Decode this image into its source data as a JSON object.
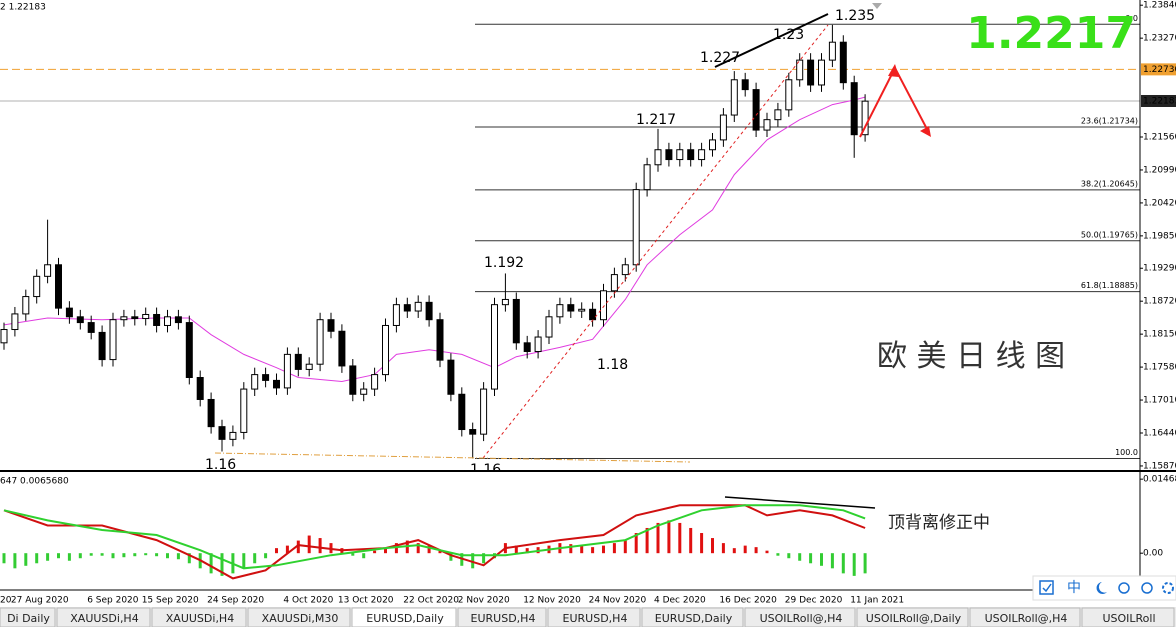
{
  "chart_data": [
    {
      "type": "candlestick",
      "header": "2 1.22183",
      "categories": [
        "20",
        "27 Aug 2020",
        null,
        null,
        null,
        null,
        null,
        null,
        "6 Sep 2020",
        null,
        null,
        null,
        null,
        "15 Sep 2020",
        null,
        null,
        null,
        null,
        null,
        "24 Sep 2020",
        null,
        null,
        null,
        null,
        null,
        null,
        "4 Oct 2020",
        null,
        null,
        null,
        null,
        "13 Oct 2020",
        null,
        null,
        null,
        null,
        null,
        "22 Oct 2020",
        null,
        null,
        null,
        null,
        "2 Nov 2020",
        null,
        null,
        null,
        null,
        null,
        "12 Nov 2020",
        null,
        null,
        null,
        null,
        null,
        "24 Nov 2020",
        null,
        null,
        null,
        null,
        null,
        "4 Dec 2020",
        null,
        null,
        null,
        null,
        null,
        "16 Dec 2020",
        null,
        null,
        null,
        null,
        null,
        "29 Dec 2020",
        null,
        null,
        null,
        null,
        null,
        "11 Jan 2021",
        null
      ],
      "open": [
        1.18,
        1.1823,
        1.185,
        1.188,
        1.1915,
        1.1935,
        1.186,
        1.1845,
        1.1835,
        1.1818,
        1.1771,
        1.184,
        1.1845,
        1.1842,
        1.1849,
        1.183,
        1.1845,
        1.1835,
        1.174,
        1.1702,
        1.1655,
        1.1633,
        1.1645,
        1.172,
        1.1745,
        1.1735,
        1.1722,
        1.178,
        1.1754,
        1.1763,
        1.184,
        1.182,
        1.176,
        1.1711,
        1.172,
        1.1745,
        1.183,
        1.1866,
        1.1855,
        1.187,
        1.184,
        1.177,
        1.1711,
        1.165,
        1.1642,
        1.172,
        1.1866,
        1.1875,
        1.18,
        1.1785,
        1.181,
        1.1845,
        1.1866,
        1.1855,
        1.1858,
        1.184,
        1.189,
        1.1918,
        1.1935,
        1.2065,
        1.2108,
        1.2134,
        1.2117,
        1.2134,
        1.2117,
        1.2134,
        1.2151,
        1.2194,
        1.2255,
        1.2238,
        1.2168,
        1.2186,
        1.2203,
        1.2255,
        1.2289,
        1.2246,
        1.2289,
        1.232,
        1.225,
        1.216
      ],
      "high": [
        1.1835,
        1.1862,
        1.1892,
        1.1927,
        1.2013,
        1.1947,
        1.1872,
        1.1857,
        1.1847,
        1.183,
        1.1852,
        1.1857,
        1.1857,
        1.1861,
        1.1861,
        1.1857,
        1.1857,
        1.1847,
        1.1752,
        1.1714,
        1.1667,
        1.1657,
        1.1732,
        1.1757,
        1.1757,
        1.1747,
        1.1792,
        1.1792,
        1.1775,
        1.1852,
        1.1852,
        1.1832,
        1.1772,
        1.1732,
        1.1757,
        1.1842,
        1.1878,
        1.1878,
        1.1882,
        1.1882,
        1.1852,
        1.1782,
        1.1723,
        1.1662,
        1.1732,
        1.1878,
        1.192,
        1.1887,
        1.1812,
        1.1822,
        1.1857,
        1.1878,
        1.1878,
        1.187,
        1.187,
        1.1902,
        1.193,
        1.1947,
        1.2077,
        1.212,
        1.217,
        1.2146,
        1.2146,
        1.2146,
        1.2146,
        1.2163,
        1.2206,
        1.227,
        1.2267,
        1.225,
        1.2198,
        1.2215,
        1.2267,
        1.2301,
        1.2301,
        1.2301,
        1.235,
        1.2332,
        1.2262,
        1.223
      ],
      "low": [
        1.1788,
        1.1811,
        1.1838,
        1.1868,
        1.1903,
        1.1848,
        1.1833,
        1.1823,
        1.1806,
        1.1759,
        1.1759,
        1.1828,
        1.183,
        1.183,
        1.1818,
        1.1818,
        1.1823,
        1.1728,
        1.169,
        1.1643,
        1.1612,
        1.1621,
        1.1633,
        1.1708,
        1.1723,
        1.171,
        1.171,
        1.1742,
        1.1742,
        1.1751,
        1.1808,
        1.1748,
        1.1699,
        1.1699,
        1.1708,
        1.1733,
        1.1818,
        1.1843,
        1.1843,
        1.1828,
        1.1758,
        1.1699,
        1.1638,
        1.16,
        1.163,
        1.1708,
        1.1854,
        1.1788,
        1.1773,
        1.1773,
        1.1798,
        1.1833,
        1.1843,
        1.1843,
        1.1828,
        1.1828,
        1.1878,
        1.1906,
        1.1923,
        1.2053,
        1.2096,
        1.2105,
        1.2105,
        1.2105,
        1.2105,
        1.2122,
        1.2139,
        1.2182,
        1.2226,
        1.2156,
        1.2156,
        1.2174,
        1.2191,
        1.2243,
        1.2234,
        1.2234,
        1.2277,
        1.2238,
        1.212,
        1.2148
      ],
      "close": [
        1.1823,
        1.185,
        1.188,
        1.1915,
        1.1935,
        1.186,
        1.1845,
        1.1835,
        1.1818,
        1.1771,
        1.184,
        1.1845,
        1.1842,
        1.1849,
        1.183,
        1.1845,
        1.1835,
        1.174,
        1.1702,
        1.1655,
        1.1633,
        1.1645,
        1.172,
        1.1745,
        1.1735,
        1.1722,
        1.178,
        1.1754,
        1.1763,
        1.184,
        1.182,
        1.176,
        1.1711,
        1.172,
        1.1745,
        1.183,
        1.1866,
        1.1855,
        1.187,
        1.184,
        1.177,
        1.1711,
        1.165,
        1.1642,
        1.172,
        1.1866,
        1.1875,
        1.18,
        1.1785,
        1.181,
        1.1845,
        1.1866,
        1.1855,
        1.1858,
        1.184,
        1.189,
        1.1918,
        1.1935,
        1.2065,
        1.2108,
        1.2134,
        1.2117,
        1.2134,
        1.2117,
        1.2134,
        1.2151,
        1.2194,
        1.2255,
        1.2238,
        1.2168,
        1.2186,
        1.2203,
        1.2255,
        1.2289,
        1.2246,
        1.2289,
        1.232,
        1.225,
        1.216,
        1.2218
      ],
      "color_up": "#ffffff",
      "color_down": "#000000",
      "ma": {
        "color": "#e03ce0",
        "x": [
          0,
          4,
          9,
          14,
          17,
          19,
          22,
          25,
          27,
          31,
          34,
          36,
          39,
          42,
          45,
          47,
          51,
          54,
          57,
          59,
          62,
          65,
          67,
          70,
          73,
          76,
          78,
          79
        ],
        "values": [
          1.1831,
          1.1843,
          1.184,
          1.1843,
          1.1843,
          1.1814,
          1.178,
          1.1757,
          1.174,
          1.1733,
          1.1745,
          1.178,
          1.1788,
          1.178,
          1.1757,
          1.1776,
          1.1792,
          1.1806,
          1.1875,
          1.1935,
          1.1987,
          1.203,
          1.2091,
          1.2151,
          1.2186,
          1.2212,
          1.222,
          1.2225
        ]
      },
      "ylim": [
        1.158,
        1.2393
      ],
      "yticks": [
        {
          "value": 1.2384,
          "label": "1.23840"
        },
        {
          "value": 1.2327,
          "label": "1.23270"
        },
        {
          "value": 1.2156,
          "label": "1.21560"
        },
        {
          "value": 1.2099,
          "label": "1.20990"
        },
        {
          "value": 1.2042,
          "label": "1.20420"
        },
        {
          "value": 1.1985,
          "label": "1.19850"
        },
        {
          "value": 1.1929,
          "label": "1.19290"
        },
        {
          "value": 1.1872,
          "label": "1.18720"
        },
        {
          "value": 1.1815,
          "label": "1.18150"
        },
        {
          "value": 1.1758,
          "label": "1.17580"
        },
        {
          "value": 1.1701,
          "label": "1.17010"
        },
        {
          "value": 1.1644,
          "label": "1.16440"
        },
        {
          "value": 1.1587,
          "label": "1.15870"
        }
      ],
      "hlines": [
        {
          "value": 1.2273,
          "label": "1.22730",
          "color": "#f0a030",
          "dashed": true,
          "label_background": "#f0a030",
          "label_color": "#000000"
        },
        {
          "value": 1.22183,
          "label": "1.22183",
          "color": "#b0b0b0",
          "dashed": false,
          "label_background": "#222222",
          "label_color": "#ffffff"
        }
      ],
      "fib": {
        "color": "#333333",
        "levels": [
          {
            "label": "0.0",
            "value": 1.2351
          },
          {
            "label": "23.6(1.21734)",
            "value": 1.21734
          },
          {
            "label": "38.2(1.20645)",
            "value": 1.20645
          },
          {
            "label": "50.0(1.19765)",
            "value": 1.19765
          },
          {
            "label": "61.8(1.18885)",
            "value": 1.18885
          },
          {
            "label": "100.0",
            "value": 1.16
          }
        ]
      },
      "annotations": [
        "1.235",
        "1.23",
        "1.227",
        "1.217",
        "1.192",
        "1.18",
        "1.16",
        "1.16"
      ],
      "big_price": "1.2217",
      "overlay_title": "欧 美 日 线 图"
    },
    {
      "type": "macd",
      "header": "647 0.0065680",
      "note": "顶背离修正中",
      "ylim": [
        -0.0073,
        0.0161
      ],
      "yticks": [
        {
          "value": 0.01468,
          "label": "0.01468"
        },
        {
          "value": 0,
          "label": "0.00"
        }
      ],
      "histogram": {
        "color_up": "#e01010",
        "color_down": "#33cc33",
        "values": [
          -0.002,
          -0.003,
          -0.0025,
          -0.002,
          -0.0015,
          -0.001,
          -0.0015,
          -0.001,
          -0.0005,
          -0.0005,
          -0.001,
          -0.0008,
          -0.0006,
          -0.0004,
          -0.0006,
          -0.001,
          -0.0012,
          -0.002,
          -0.003,
          -0.004,
          -0.0045,
          -0.004,
          -0.003,
          -0.002,
          -0.001,
          0.001,
          0.0015,
          0.0025,
          0.0035,
          0.003,
          0.002,
          0.001,
          -0.0005,
          -0.001,
          0.0005,
          0.001,
          0.002,
          0.0025,
          0.002,
          0.0015,
          0.0005,
          -0.0015,
          -0.0025,
          -0.003,
          -0.002,
          -0.001,
          0.002,
          0.0015,
          0.001,
          0.0012,
          0.0015,
          0.002,
          0.0018,
          0.0015,
          0.0012,
          0.0015,
          0.002,
          0.0025,
          0.004,
          0.005,
          0.006,
          0.0065,
          0.006,
          0.005,
          0.004,
          0.003,
          0.002,
          0.001,
          0.0015,
          0.0012,
          0.0005,
          -0.0005,
          -0.001,
          -0.0015,
          -0.002,
          -0.0025,
          -0.003,
          -0.004,
          -0.0045,
          -0.004
        ]
      },
      "series": [
        {
          "color": "#d01010",
          "x": [
            0,
            4,
            9,
            14,
            18,
            21,
            24,
            27,
            31,
            35,
            38,
            41,
            44,
            46,
            51,
            55,
            58,
            62,
            66,
            68,
            70,
            73,
            76,
            79
          ],
          "values": [
            0.0085,
            0.0055,
            0.0055,
            0.0026,
            -0.0014,
            -0.005,
            -0.0034,
            0.0016,
            0.0006,
            0.001,
            0.0026,
            -0.0004,
            -0.0024,
            0.001,
            0.0026,
            0.0036,
            0.0075,
            0.0095,
            0.0095,
            0.0095,
            0.0075,
            0.0085,
            0.0075,
            0.005
          ]
        },
        {
          "color": "#2fd12f",
          "x": [
            0,
            4,
            9,
            14,
            18,
            22,
            25,
            30,
            35,
            38,
            42,
            46,
            51,
            57,
            60,
            64,
            68,
            73,
            77,
            79
          ],
          "values": [
            0.0085,
            0.0065,
            0.0046,
            0.0036,
            0.0006,
            -0.003,
            -0.0024,
            -0.0004,
            0.001,
            0.0016,
            -0.0004,
            -0.0004,
            0.001,
            0.0026,
            0.0055,
            0.0085,
            0.0095,
            0.0095,
            0.0085,
            0.0069
          ]
        }
      ]
    }
  ],
  "tabs": [
    "Di Daily",
    "XAUUSDi,H4",
    "XAUUSDi,H4",
    "XAUUSDi,M30",
    "EURUSD,Daily",
    "EURUSD,H4",
    "EURUSD,H4",
    "EURUSD,Daily",
    "USOILRoll@,H4",
    "USOILRoll@,Daily",
    "USOILRoll@,H4",
    "USOILRoll"
  ],
  "active_tab": 4,
  "toolbar": {
    "ime": "中"
  }
}
